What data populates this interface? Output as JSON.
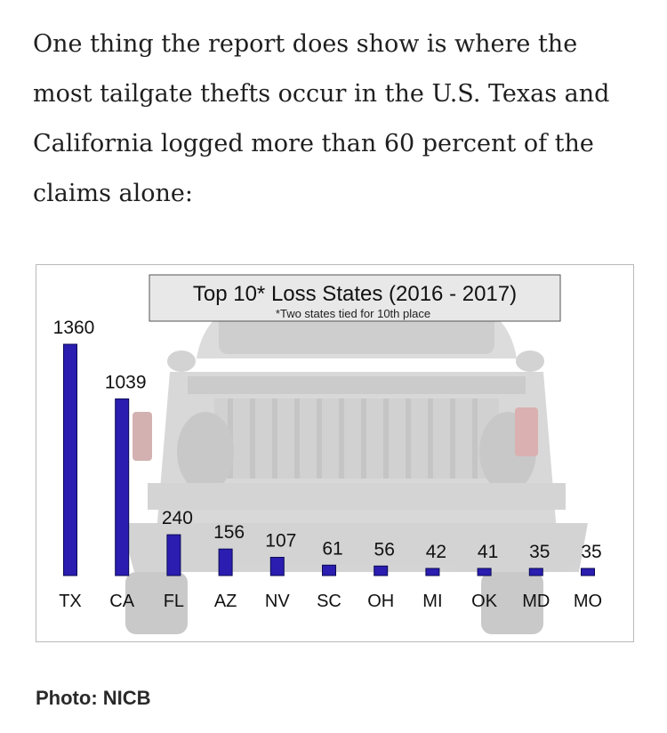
{
  "article": {
    "paragraph": "One thing the report does show is where the most tailgate thefts occur in the U.S. Texas and California logged more than 60 percent of the claims alone:"
  },
  "photo_credit": "Photo: NICB",
  "chart_data": {
    "type": "bar",
    "title": "Top 10* Loss States (2016 - 2017)",
    "subtitle": "*Two states tied for 10th place",
    "xlabel": "",
    "ylabel": "",
    "categories": [
      "TX",
      "CA",
      "FL",
      "AZ",
      "NV",
      "SC",
      "OH",
      "MI",
      "OK",
      "MD",
      "MO"
    ],
    "values": [
      1360,
      1039,
      240,
      156,
      107,
      61,
      56,
      42,
      41,
      35,
      35
    ],
    "data_labels": true,
    "grid": false,
    "legend": "none",
    "ylim": [
      0,
      1400
    ],
    "colors": {
      "bar": "#2a1db0",
      "bar_edge": "#0b0a55",
      "text": "#111111",
      "background_image": "#e6e6e6"
    }
  }
}
